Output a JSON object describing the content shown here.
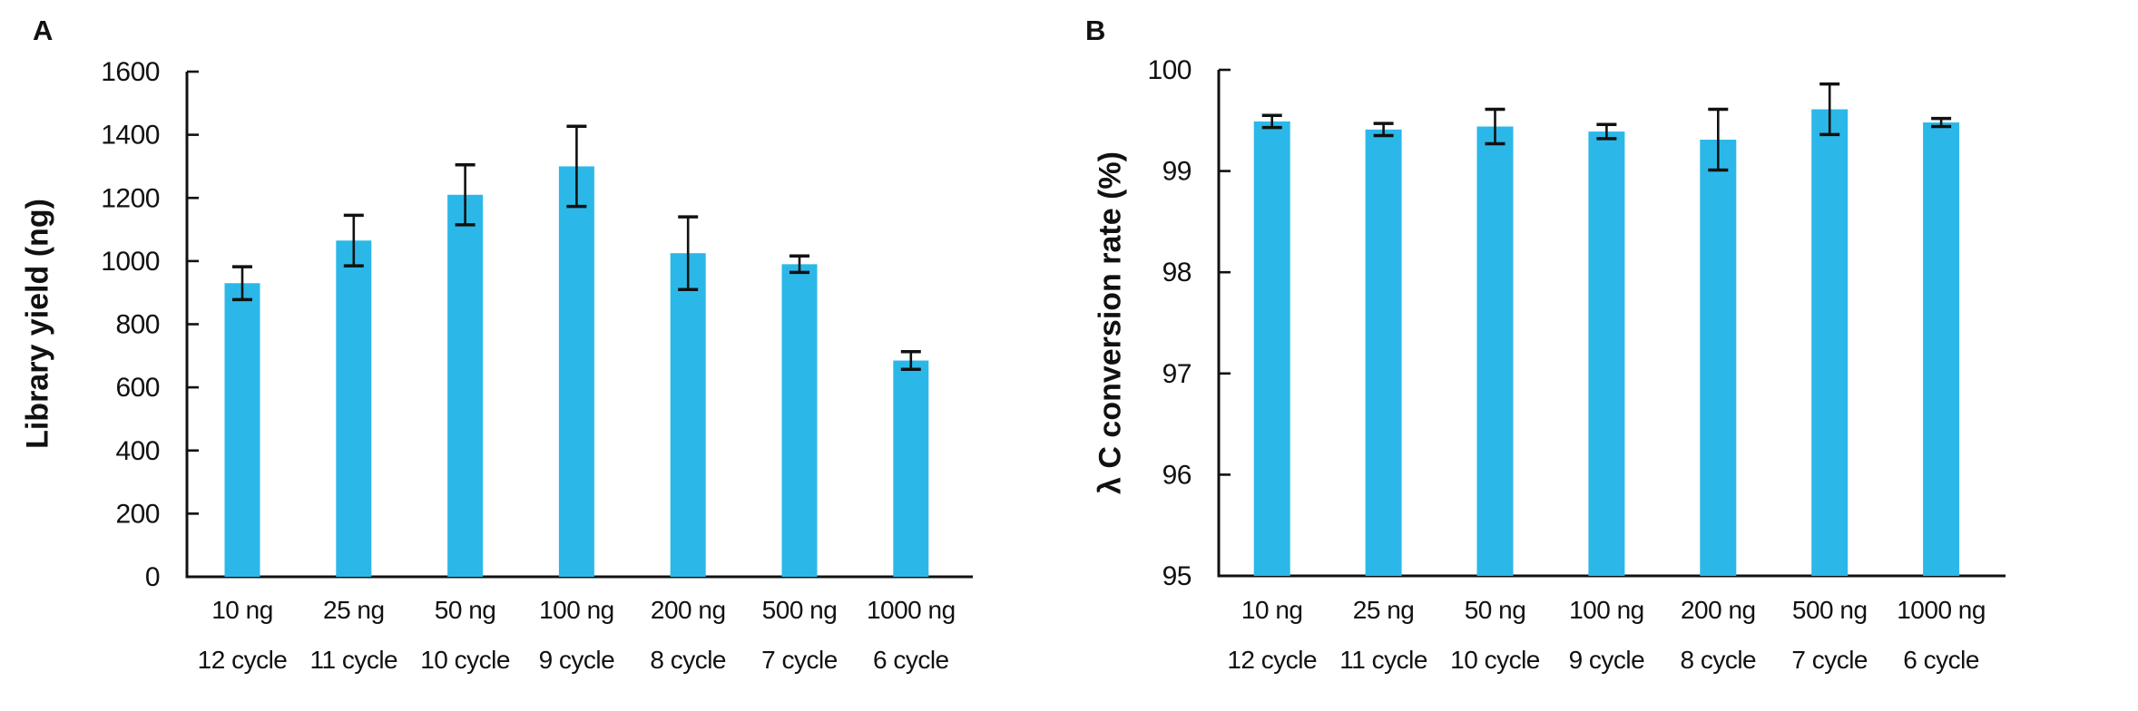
{
  "figure": {
    "background": "#ffffff",
    "text_color": "#111111",
    "accent_color": "#2bb8e8"
  },
  "panels": [
    {
      "label": "A",
      "y_axis_title": "Library yield (ng)"
    },
    {
      "label": "B",
      "y_axis_title": "λ C conversion rate (%)"
    }
  ],
  "chart_data": [
    {
      "type": "bar",
      "panel": "A",
      "title": "",
      "xlabel": "",
      "ylabel": "Library yield (ng)",
      "ylim": [
        0,
        1600
      ],
      "yticks": [
        0,
        200,
        400,
        600,
        800,
        1000,
        1200,
        1400,
        1600
      ],
      "grid": false,
      "legend": null,
      "bar_color": "#2bb8e8",
      "error_color": "#111111",
      "categories": [
        [
          "10 ng",
          "12 cycle"
        ],
        [
          "25 ng",
          "11 cycle"
        ],
        [
          "50 ng",
          "10 cycle"
        ],
        [
          "100 ng",
          "9 cycle"
        ],
        [
          "200 ng",
          "8 cycle"
        ],
        [
          "500 ng",
          "7 cycle"
        ],
        [
          "1000 ng",
          "6 cycle"
        ]
      ],
      "values": [
        930,
        1065,
        1210,
        1300,
        1025,
        990,
        685
      ],
      "errors": [
        52,
        80,
        95,
        127,
        115,
        26,
        28
      ]
    },
    {
      "type": "bar",
      "panel": "B",
      "title": "",
      "xlabel": "",
      "ylabel": "λ C conversion rate (%)",
      "ylim": [
        95,
        100
      ],
      "yticks": [
        95,
        96,
        97,
        98,
        99,
        100
      ],
      "grid": false,
      "legend": null,
      "bar_color": "#2bb8e8",
      "error_color": "#111111",
      "categories": [
        [
          "10 ng",
          "12 cycle"
        ],
        [
          "25 ng",
          "11 cycle"
        ],
        [
          "50 ng",
          "10 cycle"
        ],
        [
          "100 ng",
          "9 cycle"
        ],
        [
          "200 ng",
          "8 cycle"
        ],
        [
          "500 ng",
          "7 cycle"
        ],
        [
          "1000 ng",
          "6 cycle"
        ]
      ],
      "values": [
        99.49,
        99.41,
        99.44,
        99.39,
        99.31,
        99.61,
        99.48
      ],
      "errors": [
        0.06,
        0.06,
        0.17,
        0.07,
        0.3,
        0.25,
        0.04
      ]
    }
  ]
}
